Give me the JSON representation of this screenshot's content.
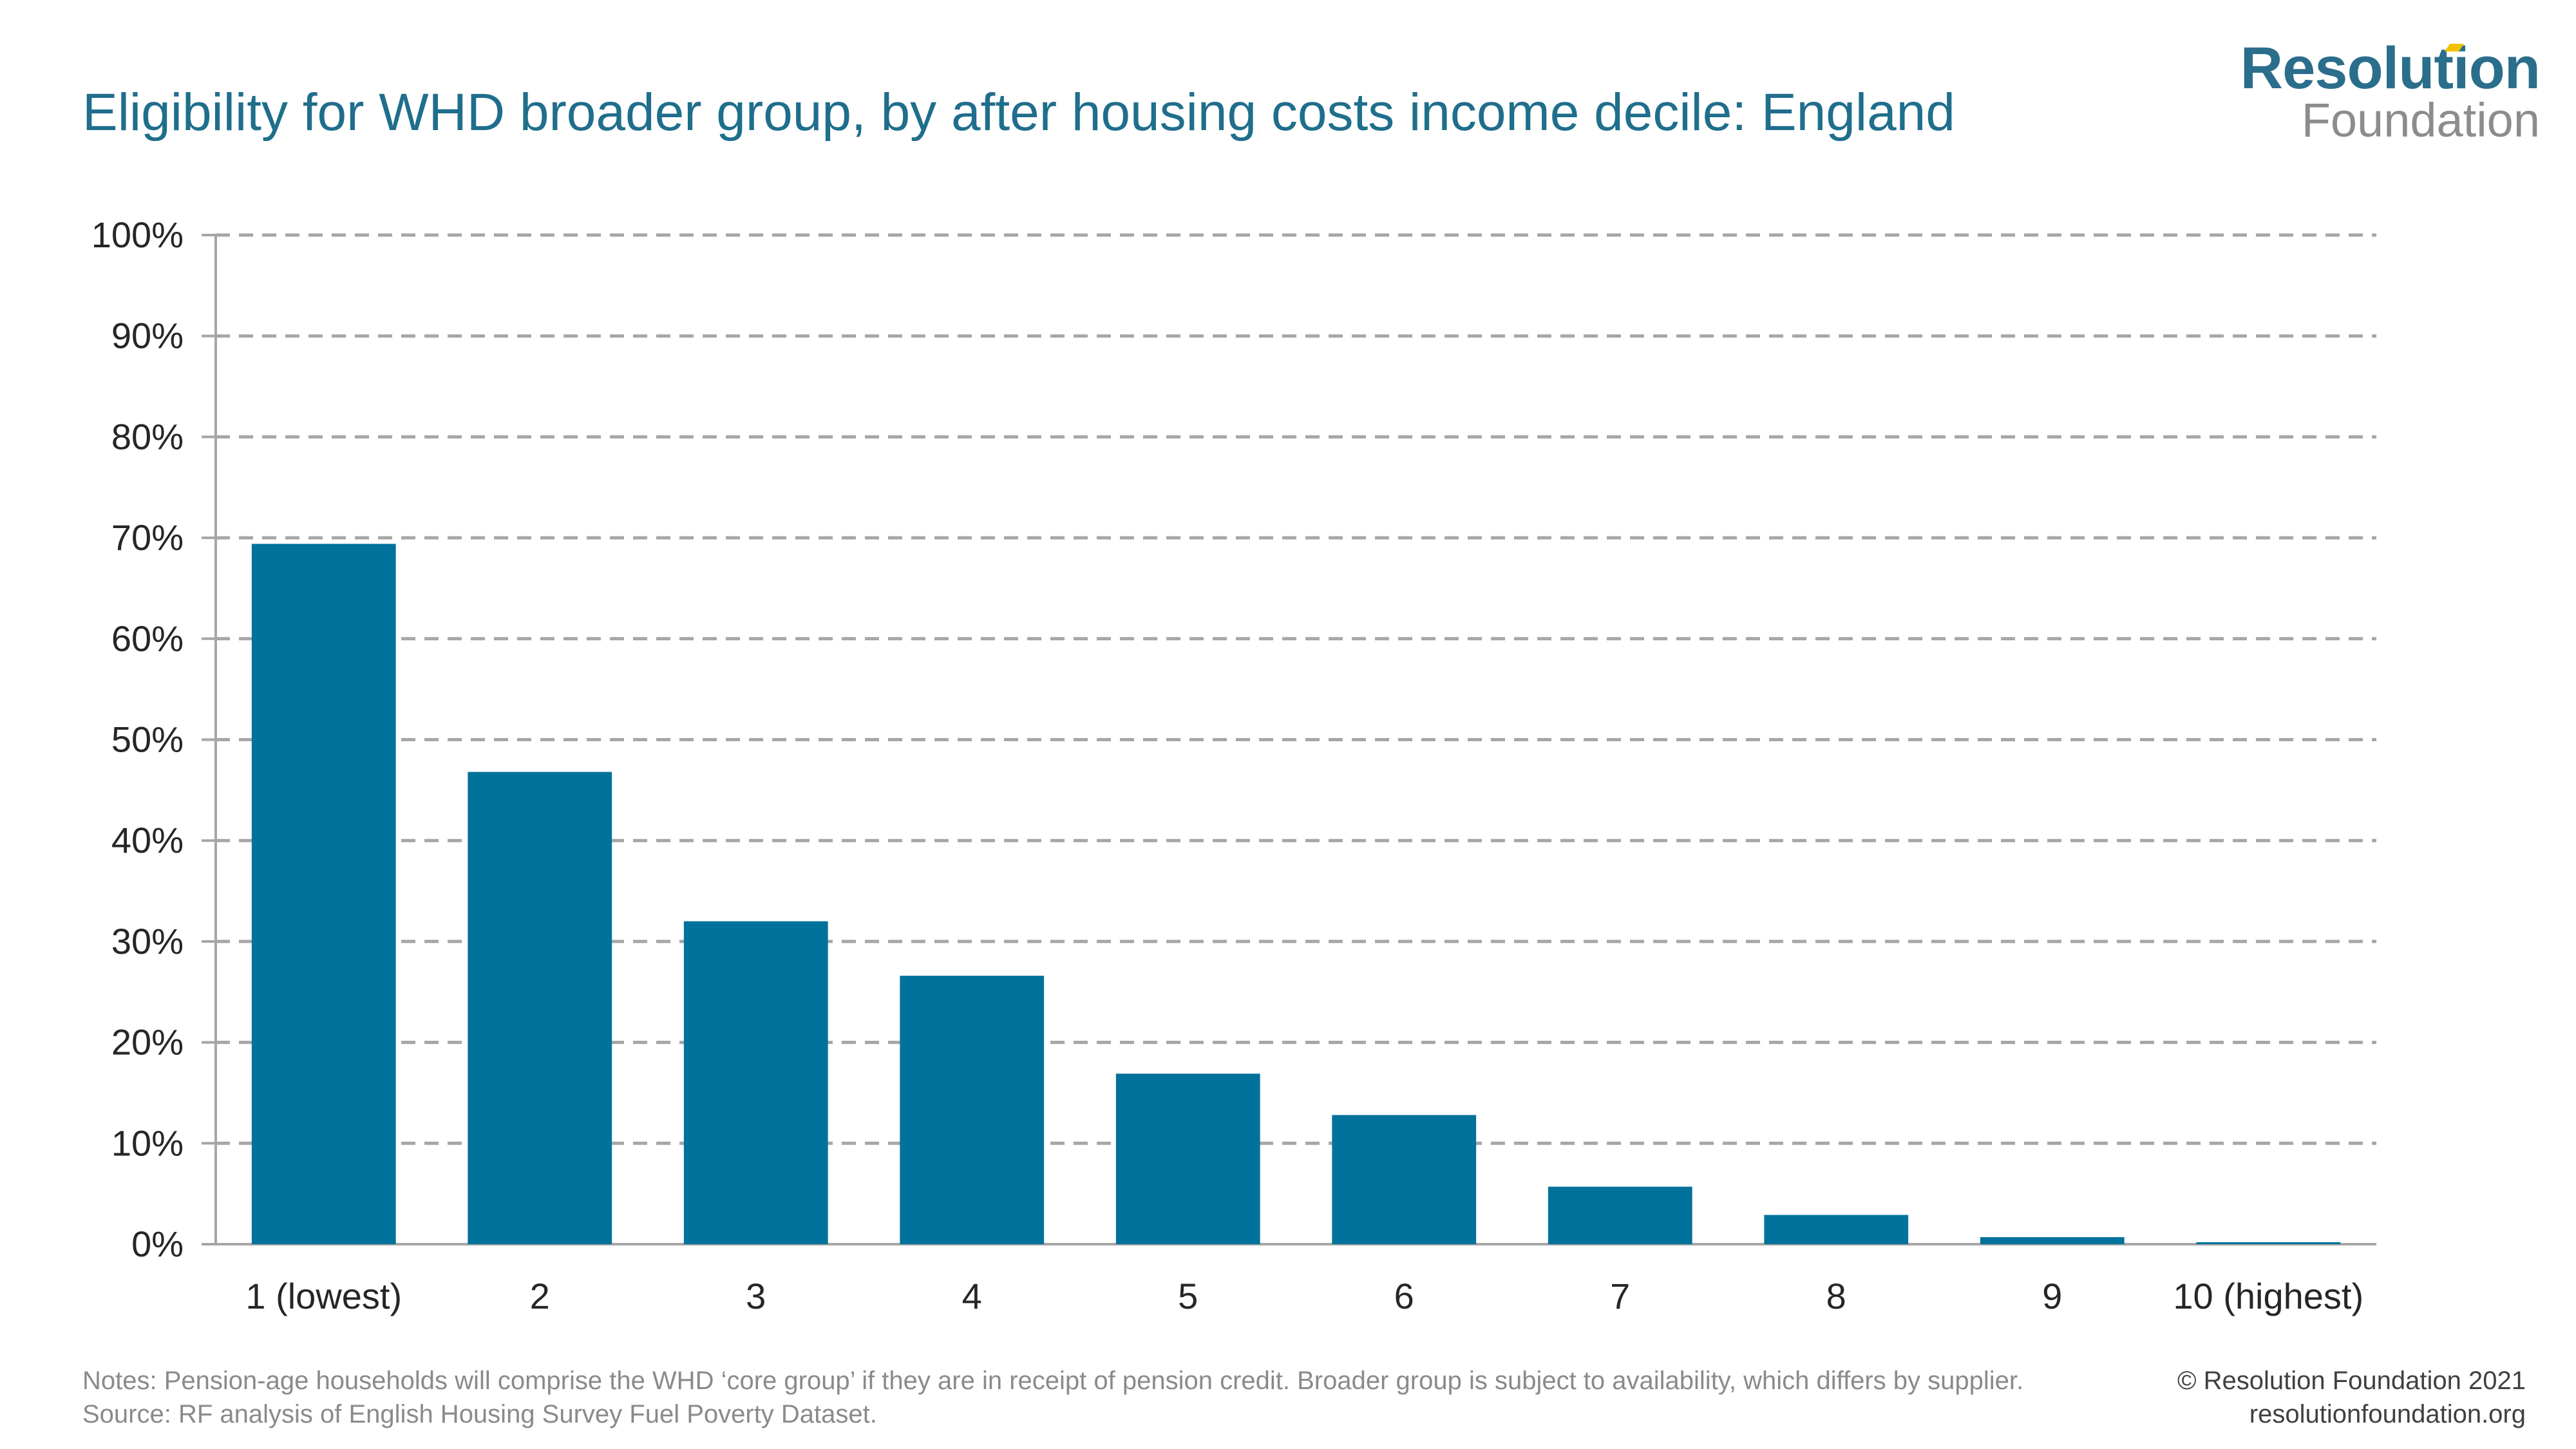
{
  "title": "Eligibility for WHD broader group, by after housing costs income decile: England",
  "logo": {
    "line1": "Resolution",
    "line2": "Foundation"
  },
  "notes": {
    "line1": "Notes: Pension-age households will comprise the WHD ‘core group’ if they are in receipt of pension credit. Broader group is subject to availability, which differs by supplier.",
    "line2": "Source: RF analysis of English Housing Survey Fuel Poverty Dataset."
  },
  "copyright": {
    "line1": "© Resolution Foundation 2021",
    "line2": "resolutionfoundation.org"
  },
  "colors": {
    "bar": "#00729c",
    "title": "#1f6e8c",
    "grid": "#a6a6a6",
    "axis_text": "#262626"
  },
  "chart_data": {
    "type": "bar",
    "title": "Eligibility for WHD broader group, by after housing costs income decile: England",
    "xlabel": "",
    "ylabel": "",
    "categories": [
      "1 (lowest)",
      "2",
      "3",
      "4",
      "5",
      "6",
      "7",
      "8",
      "9",
      "10 (highest)"
    ],
    "values": [
      69.4,
      46.8,
      32.0,
      26.6,
      16.9,
      12.8,
      5.7,
      2.9,
      0.7,
      0.2
    ],
    "ylim": [
      0,
      100
    ],
    "yticks": [
      0,
      10,
      20,
      30,
      40,
      50,
      60,
      70,
      80,
      90,
      100
    ],
    "ytick_labels": [
      "0%",
      "10%",
      "20%",
      "30%",
      "40%",
      "50%",
      "60%",
      "70%",
      "80%",
      "90%",
      "100%"
    ],
    "grid": true,
    "legend": "none"
  }
}
